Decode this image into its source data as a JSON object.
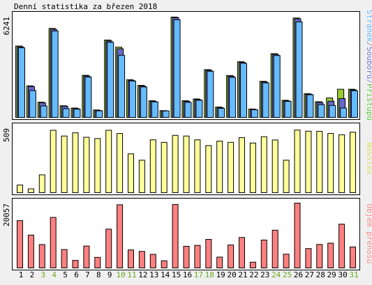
{
  "chart_data": {
    "type": "bar",
    "title": "Denní statistika za březen 2018",
    "categories": [
      "1",
      "2",
      "3",
      "4",
      "5",
      "6",
      "7",
      "8",
      "9",
      "10",
      "11",
      "12",
      "13",
      "14",
      "15",
      "16",
      "17",
      "18",
      "19",
      "20",
      "21",
      "22",
      "23",
      "24",
      "25",
      "26",
      "27",
      "28",
      "29",
      "30",
      "31"
    ],
    "weekend_days": [
      "3",
      "4",
      "10",
      "11",
      "17",
      "18",
      "24",
      "25",
      "31"
    ],
    "panels": [
      {
        "id": "top",
        "ymax_label": "6241",
        "ymax": 6241,
        "legend": [
          {
            "text": "Stránek",
            "color": "#66bbff"
          },
          {
            "text": "/",
            "color": "#9999cc"
          },
          {
            "text": "Souborů",
            "color": "#7777dd"
          },
          {
            "text": "/",
            "color": "#9999cc"
          },
          {
            "text": "Přístupů",
            "color": "#66cc44"
          }
        ],
        "series": [
          {
            "name": "Přístupů",
            "color": "#99cc33",
            "values": [
              4410,
              1950,
              940,
              5500,
              720,
              580,
              2600,
              460,
              4780,
              4340,
              2330,
              1980,
              1030,
              420,
              6200,
              1030,
              1140,
              2950,
              640,
              2590,
              3440,
              520,
              2230,
              3940,
              1060,
              6140,
              1470,
              970,
              1200,
              1740,
              1740
            ]
          },
          {
            "name": "Souborů",
            "color": "#6666cc",
            "values": [
              4360,
              1910,
              900,
              5440,
              690,
              550,
              2560,
              430,
              4720,
              4240,
              2290,
              1940,
              990,
              400,
              6160,
              990,
              1100,
              2910,
              610,
              2540,
              3400,
              490,
              2190,
              3890,
              1020,
              6090,
              1430,
              920,
              1000,
              1160,
              1700
            ]
          },
          {
            "name": "Stránek",
            "color": "#66bbff",
            "values": [
              4300,
              1660,
              710,
              5340,
              540,
              510,
              2490,
              410,
              4640,
              3840,
              2250,
              1880,
              960,
              400,
              6030,
              930,
              1060,
              2850,
              560,
              2470,
              3340,
              470,
              2130,
              3820,
              990,
              5900,
              1400,
              790,
              740,
              580,
              1650
            ]
          }
        ]
      },
      {
        "id": "middle",
        "ymax_label": "509",
        "ymax": 509,
        "legend": [
          {
            "text": "Návštěv",
            "color": "#dddd66"
          }
        ],
        "series": [
          {
            "name": "Návštěv",
            "color": "#ffff99",
            "values": [
              60,
              30,
              140,
              490,
              445,
              470,
              435,
              425,
              490,
              465,
              305,
              255,
              415,
              395,
              450,
              445,
              415,
              370,
              405,
              395,
              432,
              390,
              440,
              414,
              255,
              492,
              483,
              482,
              465,
              455,
              475
            ]
          }
        ]
      },
      {
        "id": "bottom",
        "ymax_label": "20057",
        "ymax": 20057,
        "legend": [
          {
            "text": "Objem přenosu",
            "color": "#ff8888"
          }
        ],
        "series": [
          {
            "name": "Objem přenosu",
            "color": "#ff8080",
            "values": [
              14640,
              10170,
              7230,
              15640,
              5690,
              2340,
              6780,
              3270,
              12000,
              19550,
              5580,
              5110,
              4200,
              2220,
              19650,
              6700,
              6980,
              8840,
              3350,
              7110,
              9420,
              1790,
              8630,
              11680,
              4260,
              20057,
              6000,
              7270,
              7670,
              13550,
              6490
            ]
          }
        ]
      }
    ]
  }
}
